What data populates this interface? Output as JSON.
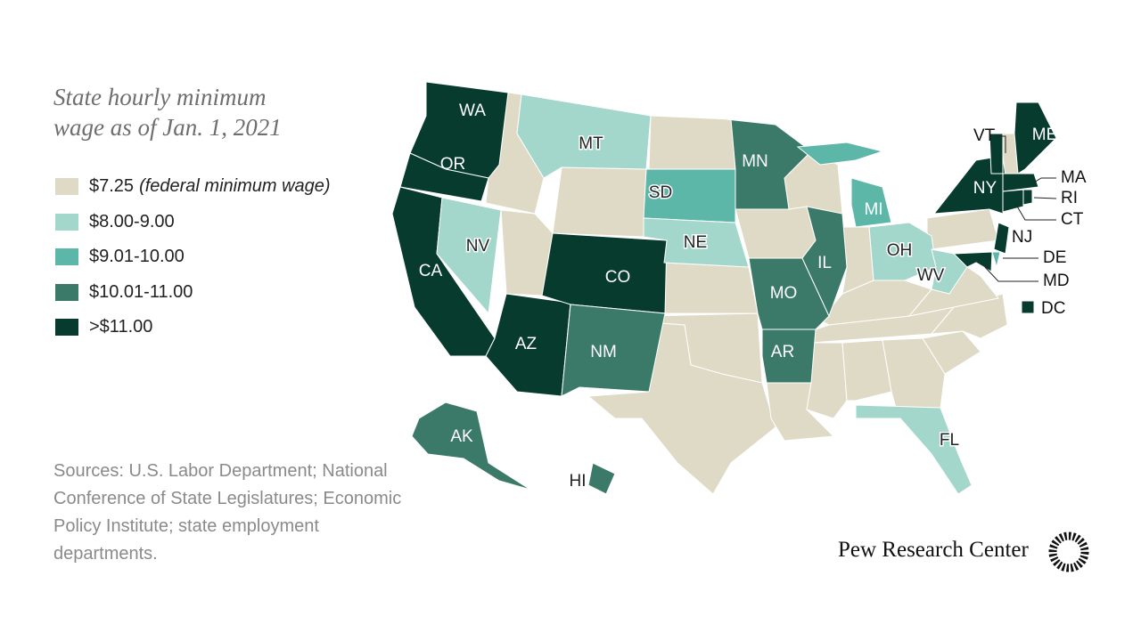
{
  "title": "State hourly minimum wage as of Jan. 1, 2021",
  "legend": [
    {
      "label": "$7.25",
      "note": "(federal minimum wage)",
      "color": "#dfdac6"
    },
    {
      "label": "$8.00-9.00",
      "color": "#a3d7cb"
    },
    {
      "label": "$9.01-10.00",
      "color": "#5db7a8"
    },
    {
      "label": "$10.01-11.00",
      "color": "#3b7a69"
    },
    {
      "label": ">$11.00",
      "color": "#063b2d"
    }
  ],
  "states": [
    {
      "label": "WA",
      "color": "#063b2d"
    },
    {
      "label": "OR",
      "color": "#063b2d"
    },
    {
      "label": "CA",
      "color": "#063b2d"
    },
    {
      "label": "NV",
      "color": "#a3d7cb"
    },
    {
      "label": "MT",
      "color": "#a3d7cb"
    },
    {
      "label": "AZ",
      "color": "#063b2d"
    },
    {
      "label": "CO",
      "color": "#063b2d"
    },
    {
      "label": "NM",
      "color": "#3b7a69"
    },
    {
      "label": "SD",
      "color": "#5db7a8"
    },
    {
      "label": "NE",
      "color": "#a3d7cb"
    },
    {
      "label": "MN",
      "color": "#3b7a69"
    },
    {
      "label": "MO",
      "color": "#3b7a69"
    },
    {
      "label": "AR",
      "color": "#3b7a69"
    },
    {
      "label": "IL",
      "color": "#3b7a69"
    },
    {
      "label": "MI",
      "color": "#5db7a8"
    },
    {
      "label": "OH",
      "color": "#a3d7cb"
    },
    {
      "label": "WV",
      "color": "#a3d7cb"
    },
    {
      "label": "FL",
      "color": "#a3d7cb"
    },
    {
      "label": "NY",
      "color": "#063b2d"
    },
    {
      "label": "VT",
      "color": "#063b2d"
    },
    {
      "label": "ME",
      "color": "#063b2d"
    },
    {
      "label": "MA",
      "color": "#063b2d"
    },
    {
      "label": "RI",
      "color": "#063b2d"
    },
    {
      "label": "CT",
      "color": "#063b2d"
    },
    {
      "label": "NJ",
      "color": "#063b2d"
    },
    {
      "label": "DE",
      "color": "#5db7a8"
    },
    {
      "label": "MD",
      "color": "#063b2d"
    },
    {
      "label": "DC",
      "color": "#063b2d"
    },
    {
      "label": "AK",
      "color": "#3b7a69"
    },
    {
      "label": "HI",
      "color": "#3b7a69"
    }
  ],
  "source": "Sources: U.S. Labor Department; National Conference of State Legislatures; Economic Policy Institute; state employment departments.",
  "brand": "Pew Research Center"
}
